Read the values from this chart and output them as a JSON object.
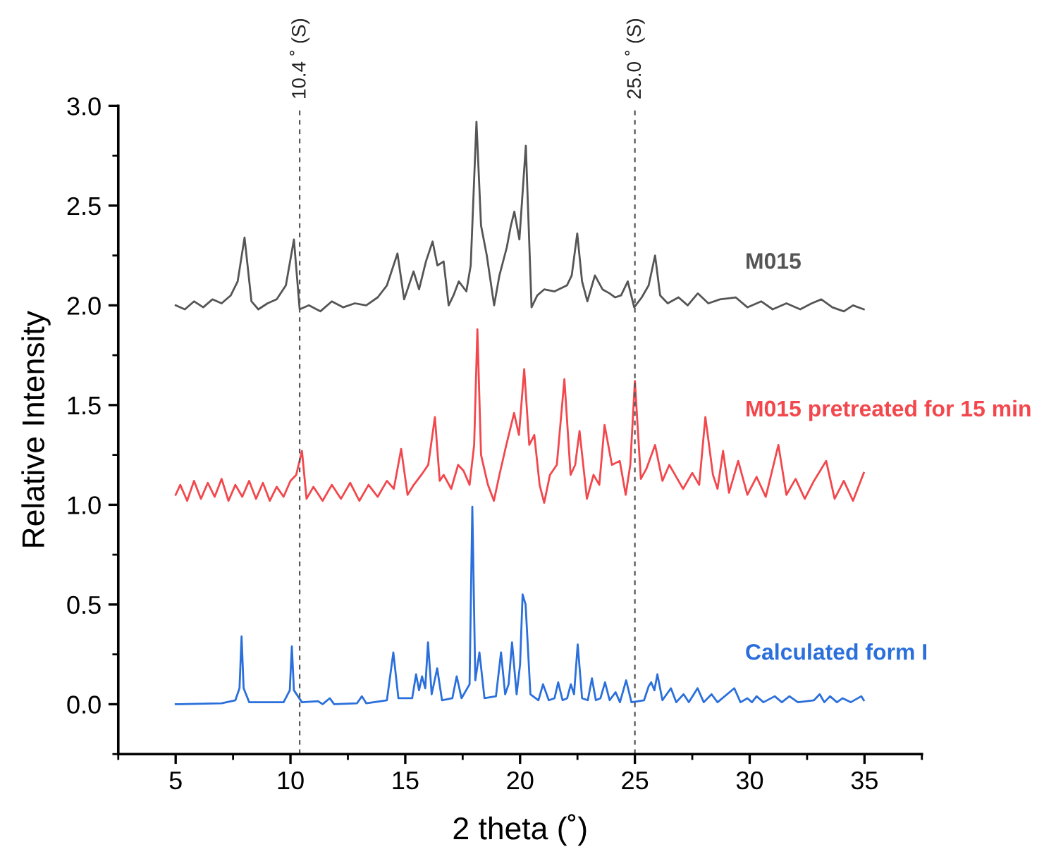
{
  "chart_data": {
    "type": "line",
    "xlabel": "2 theta (˚)",
    "ylabel": "Relative Intensity",
    "xlim": [
      2.5,
      37.5
    ],
    "ylim": [
      -0.25,
      3.0
    ],
    "xticks": [
      5,
      10,
      15,
      20,
      25,
      30,
      35
    ],
    "yticks": [
      {
        "value": 0,
        "label": "0.0"
      },
      0.5,
      {
        "value": 1,
        "label": "1.0"
      },
      1.5,
      {
        "value": 2,
        "label": "2.0"
      },
      2.5,
      {
        "value": 3,
        "label": "3.0"
      }
    ],
    "line_style": "solid",
    "marker": "none",
    "ref_lines": [
      {
        "axis": "x",
        "value": 10.4,
        "label": "10.4 ˚ (S)",
        "color": "#555555",
        "line_style": "dashed"
      },
      {
        "axis": "x",
        "value": 25.0,
        "label": "25.0 ˚ (S)",
        "color": "#555555",
        "line_style": "dashed"
      }
    ],
    "series": [
      {
        "name": "M015",
        "color": "#555555",
        "x": [
          5.0,
          5.4,
          5.8,
          6.2,
          6.6,
          7.0,
          7.4,
          7.7,
          8.0,
          8.3,
          8.6,
          9.0,
          9.4,
          9.8,
          10.15,
          10.4,
          10.8,
          11.3,
          11.8,
          12.3,
          12.8,
          13.3,
          13.8,
          14.2,
          14.66,
          14.95,
          15.36,
          15.6,
          15.9,
          16.19,
          16.4,
          16.67,
          16.89,
          17.1,
          17.33,
          17.66,
          17.85,
          18.1,
          18.3,
          18.55,
          18.87,
          19.1,
          19.42,
          19.6,
          19.75,
          19.97,
          20.25,
          20.5,
          20.75,
          21.05,
          21.5,
          22.04,
          22.25,
          22.49,
          22.7,
          22.93,
          23.26,
          23.59,
          23.9,
          24.14,
          24.4,
          24.69,
          24.97,
          25.3,
          25.6,
          25.88,
          26.1,
          26.43,
          26.9,
          27.3,
          27.74,
          28.2,
          28.7,
          29.39,
          29.9,
          30.5,
          31.0,
          31.6,
          32.2,
          32.7,
          33.12,
          33.6,
          34.1,
          34.5,
          34.97
        ],
        "values": [
          2.0,
          1.98,
          2.02,
          1.99,
          2.03,
          2.01,
          2.05,
          2.12,
          2.34,
          2.02,
          1.98,
          2.01,
          2.03,
          2.1,
          2.33,
          1.98,
          2.0,
          1.97,
          2.02,
          1.99,
          2.01,
          2.0,
          2.04,
          2.1,
          2.26,
          2.03,
          2.17,
          2.08,
          2.22,
          2.32,
          2.2,
          2.22,
          2.0,
          2.05,
          2.12,
          2.07,
          2.2,
          2.92,
          2.4,
          2.25,
          2.0,
          2.15,
          2.29,
          2.4,
          2.47,
          2.33,
          2.8,
          1.99,
          2.05,
          2.08,
          2.07,
          2.1,
          2.15,
          2.36,
          2.12,
          2.02,
          2.15,
          2.08,
          2.06,
          2.04,
          2.05,
          2.12,
          1.99,
          2.04,
          2.1,
          2.25,
          2.05,
          2.01,
          2.04,
          2.0,
          2.06,
          2.01,
          2.03,
          2.04,
          1.99,
          2.02,
          1.98,
          2.01,
          1.98,
          2.01,
          2.03,
          1.99,
          1.97,
          2.0,
          1.98
        ]
      },
      {
        "name": "M015 pretreated for 15 min",
        "color": "#f2474c",
        "x": [
          5.0,
          5.2,
          5.5,
          5.8,
          6.1,
          6.4,
          6.7,
          7.0,
          7.3,
          7.6,
          7.9,
          8.2,
          8.5,
          8.8,
          9.1,
          9.4,
          9.7,
          10.0,
          10.25,
          10.5,
          10.7,
          11.0,
          11.4,
          11.8,
          12.2,
          12.6,
          13.0,
          13.4,
          13.8,
          14.2,
          14.5,
          14.82,
          15.1,
          15.37,
          15.7,
          16.0,
          16.29,
          16.5,
          16.67,
          17.0,
          17.3,
          17.54,
          17.8,
          18.0,
          18.14,
          18.3,
          18.42,
          18.6,
          18.86,
          19.1,
          19.4,
          19.74,
          19.95,
          20.18,
          20.4,
          20.62,
          20.85,
          21.05,
          21.3,
          21.6,
          21.93,
          22.2,
          22.4,
          22.59,
          22.91,
          23.2,
          23.45,
          23.68,
          24.0,
          24.34,
          24.6,
          24.8,
          25.0,
          25.26,
          25.5,
          25.88,
          26.2,
          26.5,
          26.75,
          27.1,
          27.5,
          27.8,
          28.07,
          28.4,
          28.6,
          28.84,
          29.1,
          29.5,
          29.9,
          30.3,
          30.7,
          31.25,
          31.6,
          32.0,
          32.4,
          32.8,
          33.33,
          33.7,
          34.1,
          34.5,
          34.97
        ],
        "values": [
          1.05,
          1.1,
          1.02,
          1.12,
          1.03,
          1.11,
          1.04,
          1.13,
          1.02,
          1.1,
          1.04,
          1.12,
          1.03,
          1.11,
          1.02,
          1.09,
          1.04,
          1.12,
          1.15,
          1.27,
          1.03,
          1.09,
          1.02,
          1.1,
          1.03,
          1.11,
          1.02,
          1.1,
          1.04,
          1.12,
          1.08,
          1.28,
          1.05,
          1.1,
          1.15,
          1.2,
          1.44,
          1.12,
          1.15,
          1.08,
          1.2,
          1.17,
          1.1,
          1.3,
          1.88,
          1.25,
          1.19,
          1.1,
          1.02,
          1.15,
          1.3,
          1.46,
          1.35,
          1.68,
          1.3,
          1.35,
          1.1,
          1.01,
          1.15,
          1.2,
          1.63,
          1.15,
          1.2,
          1.37,
          1.03,
          1.15,
          1.1,
          1.4,
          1.2,
          1.22,
          1.05,
          1.2,
          1.62,
          1.13,
          1.18,
          1.3,
          1.12,
          1.2,
          1.15,
          1.08,
          1.16,
          1.1,
          1.44,
          1.15,
          1.08,
          1.27,
          1.06,
          1.22,
          1.05,
          1.14,
          1.04,
          1.3,
          1.05,
          1.13,
          1.03,
          1.12,
          1.22,
          1.03,
          1.12,
          1.02,
          1.16
        ]
      },
      {
        "name": "Calculated form I",
        "color": "#2a6fdb",
        "x": [
          5.0,
          7.0,
          7.6,
          7.78,
          7.87,
          7.96,
          8.2,
          9.7,
          9.97,
          10.06,
          10.15,
          10.5,
          11.2,
          11.4,
          11.71,
          11.9,
          12.9,
          13.11,
          13.3,
          14.2,
          14.48,
          14.7,
          15.3,
          15.47,
          15.6,
          15.73,
          15.87,
          15.99,
          16.15,
          16.39,
          16.6,
          17.05,
          17.24,
          17.45,
          17.8,
          17.92,
          18.05,
          18.23,
          18.45,
          18.95,
          19.17,
          19.35,
          19.5,
          19.65,
          19.85,
          20.0,
          20.11,
          20.24,
          20.45,
          20.8,
          21.0,
          21.25,
          21.5,
          21.66,
          21.85,
          22.05,
          22.21,
          22.35,
          22.51,
          22.7,
          22.95,
          23.13,
          23.3,
          23.5,
          23.7,
          23.9,
          24.16,
          24.35,
          24.62,
          24.85,
          25.4,
          25.6,
          25.71,
          25.85,
          25.98,
          26.2,
          26.57,
          26.8,
          27.12,
          27.35,
          27.73,
          28.0,
          28.34,
          28.6,
          29.33,
          29.6,
          29.9,
          30.1,
          30.3,
          30.6,
          31.09,
          31.4,
          31.73,
          32.1,
          32.8,
          33.05,
          33.25,
          33.5,
          33.8,
          34.05,
          34.4,
          34.86,
          34.97
        ],
        "values": [
          0.0,
          0.005,
          0.02,
          0.08,
          0.34,
          0.08,
          0.01,
          0.01,
          0.07,
          0.29,
          0.07,
          0.01,
          0.015,
          0.0,
          0.03,
          0.0,
          0.005,
          0.04,
          0.005,
          0.02,
          0.26,
          0.03,
          0.03,
          0.15,
          0.07,
          0.14,
          0.08,
          0.31,
          0.05,
          0.18,
          0.02,
          0.03,
          0.14,
          0.03,
          0.1,
          0.99,
          0.12,
          0.26,
          0.03,
          0.04,
          0.26,
          0.05,
          0.1,
          0.31,
          0.05,
          0.2,
          0.55,
          0.5,
          0.05,
          0.02,
          0.1,
          0.02,
          0.03,
          0.11,
          0.02,
          0.03,
          0.1,
          0.05,
          0.3,
          0.03,
          0.02,
          0.13,
          0.02,
          0.03,
          0.11,
          0.02,
          0.06,
          0.01,
          0.12,
          0.01,
          0.02,
          0.09,
          0.11,
          0.07,
          0.15,
          0.02,
          0.08,
          0.01,
          0.05,
          0.01,
          0.08,
          0.01,
          0.05,
          0.01,
          0.08,
          0.01,
          0.03,
          0.01,
          0.04,
          0.01,
          0.04,
          0.01,
          0.04,
          0.01,
          0.02,
          0.05,
          0.01,
          0.04,
          0.01,
          0.03,
          0.01,
          0.04,
          0.02
        ]
      }
    ]
  }
}
